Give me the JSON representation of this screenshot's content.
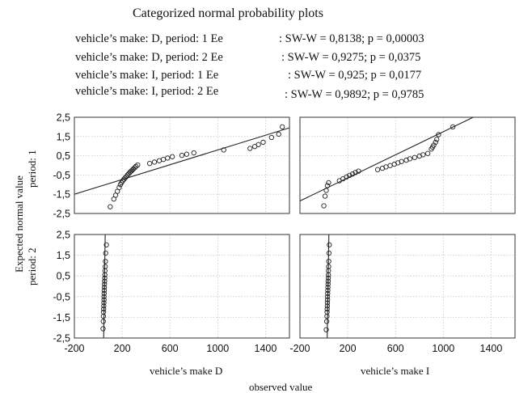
{
  "chart_data": {
    "type": "scatter",
    "title": "Categorized normal probability plots",
    "legend": [
      {
        "label": "vehicle’s make: D, period: 1  Ee",
        "stat": ": SW-W = 0,8138; p = 0,00003"
      },
      {
        "label": "vehicle’s make: D, period: 2  Ee",
        "stat": ": SW-W = 0,9275; p = 0,0375"
      },
      {
        "label": "vehicle’s make: I, period: 1   Ee",
        "stat": ": SW-W = 0,925; p = 0,0177"
      },
      {
        "label": "vehicle’s make: I, period: 2   Ee",
        "stat": ": SW-W = 0,9892; p = 0,9785"
      }
    ],
    "xlabel": "observed value",
    "ylabel": "Expected normal value",
    "col_labels": [
      "vehicle’s make D",
      "vehicle’s make I"
    ],
    "row_labels": [
      "period: 1",
      "period: 2"
    ],
    "xlim": [
      -200,
      1600
    ],
    "ylim": [
      -2.5,
      2.5
    ],
    "xticks": [
      -200,
      200,
      600,
      1000,
      1400
    ],
    "yticks": [
      "2,5",
      "1,5",
      "0,5",
      "-0,5",
      "-1,5",
      "-2,5"
    ],
    "grid": true,
    "panels": [
      {
        "name": "D, period 1",
        "fit_line": [
          [
            -200,
            -1.5
          ],
          [
            1600,
            1.95
          ]
        ],
        "points": [
          [
            100,
            -2.15
          ],
          [
            130,
            -1.75
          ],
          [
            145,
            -1.55
          ],
          [
            160,
            -1.35
          ],
          [
            175,
            -1.15
          ],
          [
            185,
            -1.0
          ],
          [
            195,
            -0.9
          ],
          [
            205,
            -0.8
          ],
          [
            215,
            -0.72
          ],
          [
            225,
            -0.65
          ],
          [
            235,
            -0.58
          ],
          [
            245,
            -0.5
          ],
          [
            255,
            -0.43
          ],
          [
            265,
            -0.36
          ],
          [
            275,
            -0.3
          ],
          [
            285,
            -0.24
          ],
          [
            295,
            -0.18
          ],
          [
            305,
            -0.12
          ],
          [
            315,
            -0.05
          ],
          [
            330,
            0.02
          ],
          [
            430,
            0.1
          ],
          [
            470,
            0.17
          ],
          [
            510,
            0.24
          ],
          [
            545,
            0.31
          ],
          [
            580,
            0.38
          ],
          [
            620,
            0.45
          ],
          [
            700,
            0.52
          ],
          [
            740,
            0.58
          ],
          [
            800,
            0.65
          ],
          [
            1050,
            0.8
          ],
          [
            1270,
            0.88
          ],
          [
            1310,
            0.98
          ],
          [
            1340,
            1.08
          ],
          [
            1380,
            1.2
          ],
          [
            1450,
            1.45
          ],
          [
            1510,
            1.62
          ],
          [
            1540,
            2.0
          ]
        ]
      },
      {
        "name": "I, period 1",
        "fit_line": [
          [
            -200,
            -1.85
          ],
          [
            1250,
            2.5
          ]
        ],
        "points": [
          [
            0,
            -2.1
          ],
          [
            10,
            -1.6
          ],
          [
            20,
            -1.3
          ],
          [
            30,
            -1.05
          ],
          [
            40,
            -0.9
          ],
          [
            130,
            -0.8
          ],
          [
            160,
            -0.7
          ],
          [
            190,
            -0.6
          ],
          [
            215,
            -0.52
          ],
          [
            240,
            -0.45
          ],
          [
            265,
            -0.37
          ],
          [
            290,
            -0.3
          ],
          [
            450,
            -0.22
          ],
          [
            490,
            -0.15
          ],
          [
            520,
            -0.08
          ],
          [
            555,
            -0.01
          ],
          [
            590,
            0.06
          ],
          [
            620,
            0.13
          ],
          [
            650,
            0.2
          ],
          [
            690,
            0.27
          ],
          [
            720,
            0.34
          ],
          [
            760,
            0.41
          ],
          [
            800,
            0.48
          ],
          [
            830,
            0.55
          ],
          [
            870,
            0.62
          ],
          [
            900,
            0.85
          ],
          [
            910,
            0.95
          ],
          [
            920,
            1.05
          ],
          [
            935,
            1.2
          ],
          [
            945,
            1.35
          ],
          [
            960,
            1.6
          ],
          [
            1080,
            2.0
          ]
        ]
      },
      {
        "name": "D, period 2",
        "fit_line": [
          [
            45,
            -2.5
          ],
          [
            58,
            2.5
          ]
        ],
        "points": [
          [
            40,
            -2.05
          ],
          [
            42,
            -1.7
          ],
          [
            43,
            -1.45
          ],
          [
            44,
            -1.25
          ],
          [
            45,
            -1.1
          ],
          [
            46,
            -0.95
          ],
          [
            47,
            -0.8
          ],
          [
            48,
            -0.65
          ],
          [
            48,
            -0.5
          ],
          [
            49,
            -0.35
          ],
          [
            50,
            -0.2
          ],
          [
            51,
            -0.05
          ],
          [
            52,
            0.1
          ],
          [
            53,
            0.25
          ],
          [
            54,
            0.4
          ],
          [
            55,
            0.55
          ],
          [
            56,
            0.75
          ],
          [
            58,
            0.95
          ],
          [
            60,
            1.2
          ],
          [
            62,
            1.6
          ],
          [
            68,
            2.0
          ]
        ]
      },
      {
        "name": "I, period 2",
        "fit_line": [
          [
            28,
            -2.5
          ],
          [
            42,
            2.5
          ]
        ],
        "points": [
          [
            20,
            -2.1
          ],
          [
            24,
            -1.7
          ],
          [
            26,
            -1.45
          ],
          [
            27,
            -1.25
          ],
          [
            28,
            -1.1
          ],
          [
            29,
            -0.95
          ],
          [
            30,
            -0.8
          ],
          [
            31,
            -0.65
          ],
          [
            31,
            -0.5
          ],
          [
            32,
            -0.35
          ],
          [
            33,
            -0.2
          ],
          [
            34,
            -0.05
          ],
          [
            35,
            0.1
          ],
          [
            36,
            0.25
          ],
          [
            37,
            0.4
          ],
          [
            38,
            0.55
          ],
          [
            39,
            0.75
          ],
          [
            40,
            0.95
          ],
          [
            41,
            1.2
          ],
          [
            43,
            1.6
          ],
          [
            46,
            2.0
          ]
        ]
      }
    ]
  }
}
